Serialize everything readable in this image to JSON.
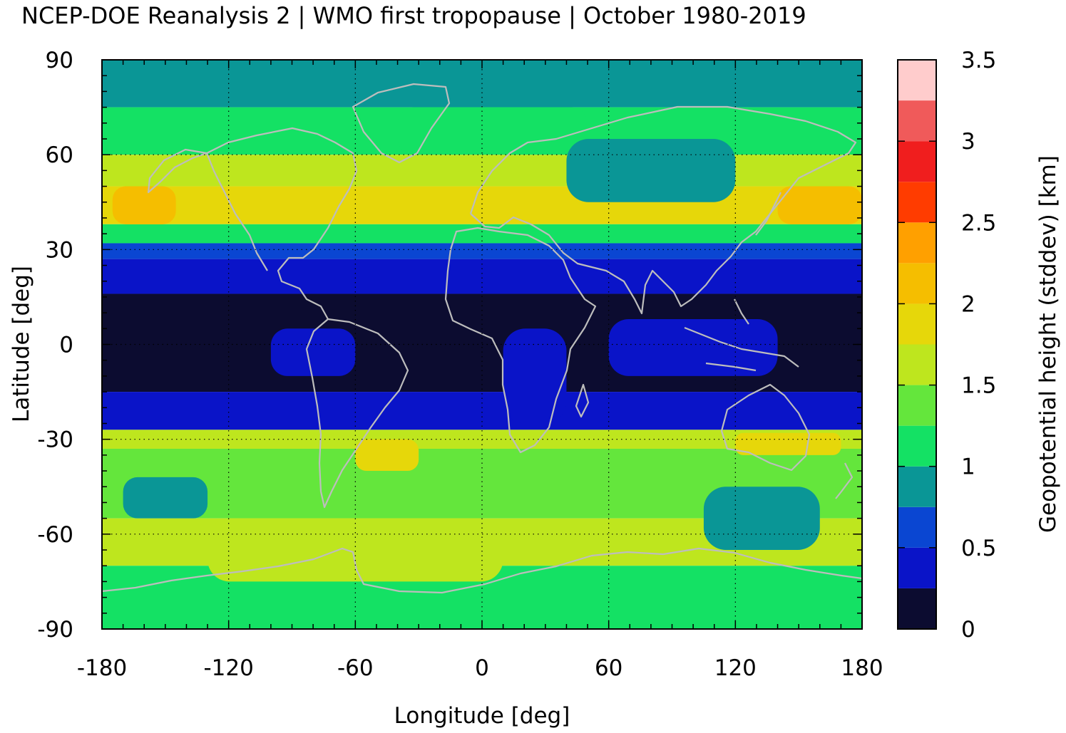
{
  "chart_data": {
    "type": "heatmap",
    "title": "NCEP-DOE Reanalysis 2 | WMO first tropopause | October 1980-2019",
    "xlabel": "Longitude [deg]",
    "ylabel": "Latitude [deg]",
    "colorbar_label": "Geopotential height (stddev) [km]",
    "xlim": [
      -180,
      180
    ],
    "ylim": [
      -90,
      90
    ],
    "xticks": [
      -180,
      -120,
      -60,
      0,
      60,
      120,
      180
    ],
    "xtick_labels": [
      "-180",
      "-120",
      "-60",
      "0",
      "60",
      "120",
      "180"
    ],
    "yticks": [
      90,
      60,
      30,
      0,
      -30,
      -60,
      -90
    ],
    "ytick_labels": [
      "90",
      "60",
      "30",
      "0",
      "-30",
      "-60",
      "-90"
    ],
    "colorbar_ticks": [
      0,
      0.5,
      1,
      1.5,
      2,
      2.5,
      3,
      3.5
    ],
    "colorbar_tick_labels": [
      "0",
      "0.5",
      "1",
      "1.5",
      "2",
      "2.5",
      "3",
      "3.5"
    ],
    "colorbar_range": [
      0,
      3.5
    ],
    "grid": true,
    "colorbar_levels": [
      {
        "from": 0.0,
        "to": 0.25,
        "color": "#0c0c30"
      },
      {
        "from": 0.25,
        "to": 0.5,
        "color": "#0a14c8"
      },
      {
        "from": 0.5,
        "to": 0.75,
        "color": "#0a46d2"
      },
      {
        "from": 0.75,
        "to": 1.0,
        "color": "#0a9696"
      },
      {
        "from": 1.0,
        "to": 1.25,
        "color": "#14e164"
      },
      {
        "from": 1.25,
        "to": 1.5,
        "color": "#64e63c"
      },
      {
        "from": 1.5,
        "to": 1.75,
        "color": "#bee61e"
      },
      {
        "from": 1.75,
        "to": 2.0,
        "color": "#e6d70a"
      },
      {
        "from": 2.0,
        "to": 2.25,
        "color": "#f5be00"
      },
      {
        "from": 2.25,
        "to": 2.5,
        "color": "#ffa000"
      },
      {
        "from": 2.5,
        "to": 2.75,
        "color": "#ff3c00"
      },
      {
        "from": 2.75,
        "to": 3.0,
        "color": "#f01e1e"
      },
      {
        "from": 3.0,
        "to": 3.25,
        "color": "#f05a5a"
      },
      {
        "from": 3.25,
        "to": 3.5,
        "color": "#ffcccc"
      }
    ],
    "latitude_band_values_km": [
      {
        "lat": [
          75,
          90
        ],
        "value": 0.9
      },
      {
        "lat": [
          60,
          75
        ],
        "value": 1.1
      },
      {
        "lat": [
          50,
          60
        ],
        "value": 1.6
      },
      {
        "lat": [
          38,
          50
        ],
        "value": 1.9
      },
      {
        "lat": [
          32,
          38
        ],
        "value": 1.2
      },
      {
        "lat": [
          27,
          32
        ],
        "value": 0.6
      },
      {
        "lat": [
          16,
          27
        ],
        "value": 0.4
      },
      {
        "lat": [
          -15,
          16
        ],
        "value": 0.15
      },
      {
        "lat": [
          -27,
          -15
        ],
        "value": 0.4
      },
      {
        "lat": [
          -33,
          -27
        ],
        "value": 1.7
      },
      {
        "lat": [
          -55,
          -33
        ],
        "value": 1.4
      },
      {
        "lat": [
          -70,
          -55
        ],
        "value": 1.6
      },
      {
        "lat": [
          -90,
          -70
        ],
        "value": 1.2
      }
    ],
    "regional_features": [
      {
        "lon": [
          -175,
          -145
        ],
        "lat": [
          38,
          50
        ],
        "value": 2.1
      },
      {
        "lon": [
          140,
          180
        ],
        "lat": [
          38,
          50
        ],
        "value": 2.1
      },
      {
        "lon": [
          -40,
          50
        ],
        "lat": [
          60,
          75
        ],
        "value": 1.2
      },
      {
        "lon": [
          40,
          120
        ],
        "lat": [
          45,
          65
        ],
        "value": 0.9
      },
      {
        "lon": [
          -100,
          -60
        ],
        "lat": [
          -10,
          5
        ],
        "value": 0.4
      },
      {
        "lon": [
          10,
          40
        ],
        "lat": [
          -25,
          5
        ],
        "value": 0.4
      },
      {
        "lon": [
          60,
          140
        ],
        "lat": [
          -10,
          8
        ],
        "value": 0.4
      },
      {
        "lon": [
          -170,
          -130
        ],
        "lat": [
          -55,
          -42
        ],
        "value": 0.9
      },
      {
        "lon": [
          105,
          160
        ],
        "lat": [
          -65,
          -45
        ],
        "value": 0.9
      },
      {
        "lon": [
          -60,
          -30
        ],
        "lat": [
          -40,
          -30
        ],
        "value": 1.9
      },
      {
        "lon": [
          120,
          170
        ],
        "lat": [
          -35,
          -28
        ],
        "value": 1.9
      },
      {
        "lon": [
          -130,
          10
        ],
        "lat": [
          -75,
          -55
        ],
        "value": 1.6
      }
    ]
  }
}
